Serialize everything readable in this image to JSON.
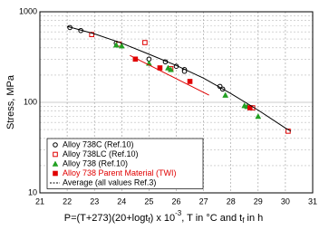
{
  "chart_data": {
    "type": "scatter",
    "y_label": "Stress, MPa",
    "x_label": [
      "P=(T+273)(20+logt",
      "f",
      ") x 10",
      "-3",
      ", T in °C and t",
      "f",
      " in h"
    ],
    "xlim": [
      21,
      31
    ],
    "xticks": [
      21,
      22,
      23,
      24,
      25,
      26,
      27,
      28,
      29,
      30,
      31
    ],
    "ylim": [
      10,
      1000
    ],
    "yticks": [
      10,
      100,
      1000
    ],
    "log_y": true,
    "grid": true,
    "legend": "lower left",
    "series": [
      {
        "name": "Alloy 738C (Ref.10)",
        "color": "#000000",
        "marker": "circle",
        "filled": false,
        "x": [
          22.1,
          22.5,
          23.8,
          25.0,
          25.6,
          26.0,
          26.3,
          26.3,
          27.6,
          27.7
        ],
        "values": [
          670,
          620,
          450,
          300,
          280,
          250,
          230,
          220,
          150,
          140
        ]
      },
      {
        "name": "Alloy 738LC (Ref.10)",
        "color": "#e00000",
        "marker": "square",
        "filled": false,
        "x": [
          22.9,
          23.9,
          24.85,
          25.8,
          28.8,
          30.1
        ],
        "values": [
          560,
          440,
          457,
          235,
          87,
          48
        ]
      },
      {
        "name": "Alloy 738 (Ref.10)",
        "color": "#22a022",
        "marker": "triangle",
        "filled": true,
        "x": [
          23.8,
          24.0,
          25.0,
          25.7,
          25.8,
          27.8,
          28.5,
          28.6,
          29.0
        ],
        "values": [
          430,
          420,
          270,
          240,
          230,
          120,
          92,
          90,
          70
        ]
      },
      {
        "name": "Alloy 738 Parent Material (TWI)",
        "color": "#e00000",
        "marker": "square",
        "filled": true,
        "name_color": "#e00000",
        "x": [
          24.5,
          25.4,
          26.5,
          28.7
        ],
        "values": [
          300,
          240,
          170,
          87
        ]
      },
      {
        "name": "Average (all values Ref.3)",
        "color": "#000000",
        "marker": "line",
        "legend_dashed": true,
        "x": [
          22,
          23,
          24,
          25,
          26,
          27,
          28,
          29,
          30,
          30.2
        ],
        "values": [
          690,
          570,
          450,
          340,
          255,
          185,
          125,
          82,
          52,
          48
        ]
      },
      {
        "color": "#e00000",
        "marker": "line",
        "x": [
          24.3,
          27.2
        ],
        "values": [
          330,
          120
        ]
      }
    ]
  }
}
